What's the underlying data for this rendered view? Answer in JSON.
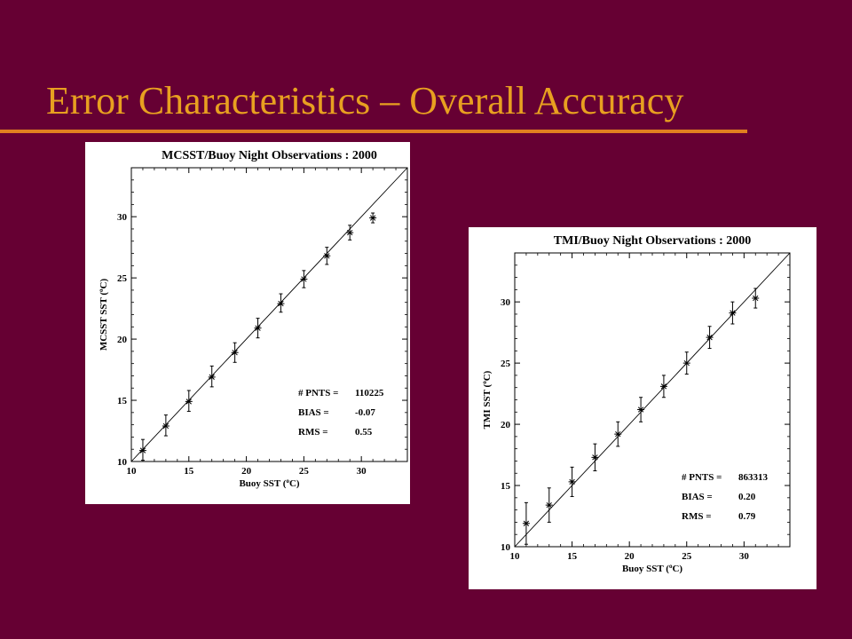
{
  "slide": {
    "title": "Error Characteristics – Overall Accuracy"
  },
  "colors": {
    "background": "#660033",
    "title": "#e8a020",
    "rule": "#e08020"
  },
  "chart_data": [
    {
      "type": "scatter",
      "title": "MCSST/Buoy Night Observations : 2000",
      "xlabel_parts": [
        "Buoy SST (",
        "o",
        "C)"
      ],
      "ylabel_parts": [
        "MCSST SST (",
        "o",
        "C)"
      ],
      "xlim": [
        10,
        34
      ],
      "ylim": [
        10,
        34
      ],
      "xticks": [
        10,
        15,
        20,
        25,
        30
      ],
      "yticks": [
        10,
        15,
        20,
        25,
        30
      ],
      "grid": false,
      "reference_line": "y = x",
      "points": [
        {
          "x": 11,
          "y": 10.9,
          "lo": 10.1,
          "hi": 11.8
        },
        {
          "x": 13,
          "y": 12.9,
          "lo": 12.1,
          "hi": 13.8
        },
        {
          "x": 15,
          "y": 14.9,
          "lo": 14.1,
          "hi": 15.8
        },
        {
          "x": 17,
          "y": 16.9,
          "lo": 16.1,
          "hi": 17.8
        },
        {
          "x": 19,
          "y": 18.9,
          "lo": 18.1,
          "hi": 19.7
        },
        {
          "x": 21,
          "y": 20.9,
          "lo": 20.1,
          "hi": 21.7
        },
        {
          "x": 23,
          "y": 22.9,
          "lo": 22.2,
          "hi": 23.7
        },
        {
          "x": 25,
          "y": 24.9,
          "lo": 24.2,
          "hi": 25.6
        },
        {
          "x": 27,
          "y": 26.8,
          "lo": 26.1,
          "hi": 27.5
        },
        {
          "x": 29,
          "y": 28.7,
          "lo": 28.1,
          "hi": 29.3
        },
        {
          "x": 31,
          "y": 29.9,
          "lo": 29.5,
          "hi": 30.3
        }
      ],
      "stats": [
        {
          "label": "# PNTS =",
          "value": "110225"
        },
        {
          "label": "BIAS  =",
          "value": "-0.07"
        },
        {
          "label": "RMS   =",
          "value": "0.55"
        }
      ]
    },
    {
      "type": "scatter",
      "title": "TMI/Buoy Night Observations : 2000",
      "xlabel_parts": [
        "Buoy SST (",
        "o",
        "C)"
      ],
      "ylabel_parts": [
        "TMI SST (",
        "o",
        "C)"
      ],
      "xlim": [
        10,
        34
      ],
      "ylim": [
        10,
        34
      ],
      "xticks": [
        10,
        15,
        20,
        25,
        30
      ],
      "yticks": [
        10,
        15,
        20,
        25,
        30
      ],
      "grid": false,
      "reference_line": "y = x",
      "points": [
        {
          "x": 11,
          "y": 11.9,
          "lo": 10.2,
          "hi": 13.6
        },
        {
          "x": 13,
          "y": 13.4,
          "lo": 12.0,
          "hi": 14.8
        },
        {
          "x": 15,
          "y": 15.3,
          "lo": 14.1,
          "hi": 16.5
        },
        {
          "x": 17,
          "y": 17.3,
          "lo": 16.2,
          "hi": 18.4
        },
        {
          "x": 19,
          "y": 19.2,
          "lo": 18.2,
          "hi": 20.2
        },
        {
          "x": 21,
          "y": 21.2,
          "lo": 20.2,
          "hi": 22.2
        },
        {
          "x": 23,
          "y": 23.1,
          "lo": 22.2,
          "hi": 24.0
        },
        {
          "x": 25,
          "y": 25.0,
          "lo": 24.1,
          "hi": 25.9
        },
        {
          "x": 27,
          "y": 27.1,
          "lo": 26.2,
          "hi": 28.0
        },
        {
          "x": 29,
          "y": 29.1,
          "lo": 28.2,
          "hi": 30.0
        },
        {
          "x": 31,
          "y": 30.3,
          "lo": 29.5,
          "hi": 31.1
        }
      ],
      "stats": [
        {
          "label": "# PNTS =",
          "value": "863313"
        },
        {
          "label": "BIAS  =",
          "value": "0.20"
        },
        {
          "label": "RMS   =",
          "value": "0.79"
        }
      ]
    }
  ]
}
